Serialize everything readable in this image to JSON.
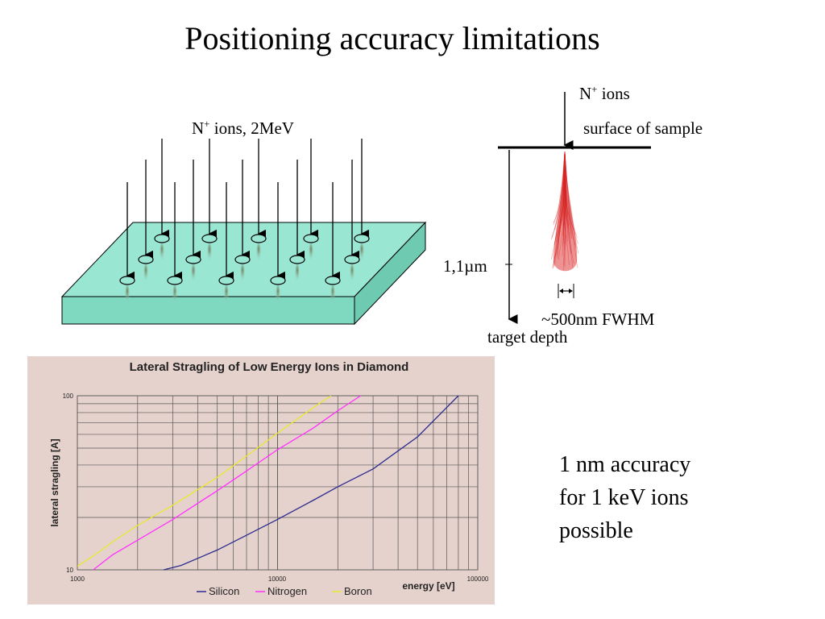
{
  "slide": {
    "title": "Positioning accuracy limitations",
    "left_figure": {
      "beam_label_pre": "N",
      "beam_label_sup": "+",
      "beam_label_post": " ions, 2MeV"
    },
    "right_figure": {
      "ion_label_pre": "N",
      "ion_label_sup": "+",
      "ion_label_post": " ions",
      "surface_label": "surface of sample",
      "depth_value": "1,1µm",
      "fwhm_label": "~500nm FWHM",
      "axis_label": "target depth"
    },
    "accuracy_lines": [
      "1 nm accuracy",
      "for 1 keV ions",
      "possible"
    ]
  },
  "chart_data": {
    "type": "line",
    "title": "Lateral Stragling of Low Energy Ions in Diamond",
    "xlabel": "energy [eV]",
    "ylabel": "lateral stragling [A]",
    "x_scale": "log",
    "y_scale": "log",
    "xlim": [
      1000,
      100000
    ],
    "ylim": [
      10,
      100
    ],
    "xticks": [
      "1000",
      "10000",
      "100000"
    ],
    "yticks": [
      "10",
      "100"
    ],
    "grid": true,
    "legend": "bottom",
    "series": [
      {
        "name": "Silicon",
        "color": "#2b2b8f",
        "x": [
          2700,
          3300,
          5000,
          7000,
          10000,
          15000,
          20000,
          30000,
          50000,
          80000
        ],
        "y": [
          10,
          10.6,
          13,
          15.8,
          19.5,
          25,
          30,
          38,
          58,
          100
        ]
      },
      {
        "name": "Nitrogen",
        "color": "#ff33ff",
        "x": [
          1200,
          1500,
          2000,
          3000,
          5000,
          7000,
          10000,
          15000,
          20000,
          26000
        ],
        "y": [
          9.8,
          12.2,
          14.8,
          19.5,
          28.5,
          37,
          49,
          65,
          82,
          100
        ]
      },
      {
        "name": "Boron",
        "color": "#e8e830",
        "x": [
          1000,
          1200,
          1500,
          2000,
          3000,
          5000,
          7000,
          10000,
          15000,
          18500
        ],
        "y": [
          10.5,
          12,
          14.5,
          18,
          23.5,
          34,
          45,
          61,
          85,
          100
        ]
      }
    ]
  }
}
